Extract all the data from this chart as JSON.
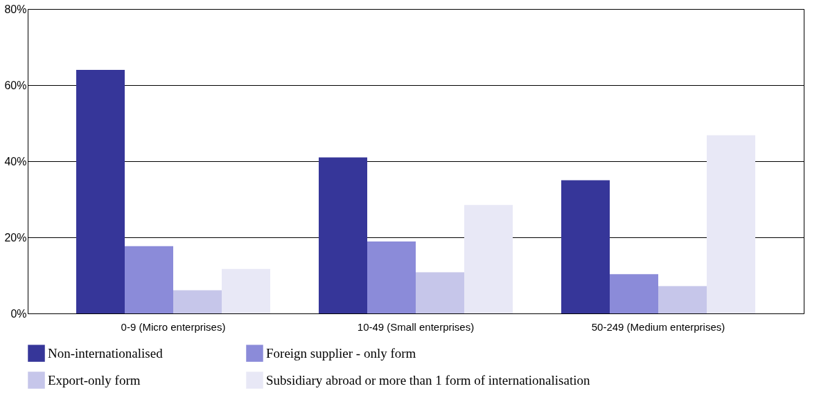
{
  "chart_data": {
    "type": "bar",
    "categories": [
      "0-9 (Micro enterprises)",
      "10-49 (Small enterprises)",
      "50-249 (Medium enterprises)"
    ],
    "series": [
      {
        "name": "Non-internationalised",
        "color": "#363699",
        "values": [
          64,
          41,
          35
        ]
      },
      {
        "name": "Foreign supplier - only form",
        "color": "#8b8bd9",
        "values": [
          17.7,
          18.9,
          10.3
        ]
      },
      {
        "name": "Export-only form",
        "color": "#c6c6ea",
        "values": [
          6.1,
          10.8,
          7.2
        ]
      },
      {
        "name": "Subsidiary abroad or more than 1 form of internationalisation",
        "color": "#e8e8f6",
        "values": [
          11.7,
          28.5,
          46.8
        ]
      }
    ],
    "ylim": [
      0,
      80
    ],
    "yticks": [
      {
        "value": 0,
        "label": "0%"
      },
      {
        "value": 20,
        "label": "20%"
      },
      {
        "value": 40,
        "label": "40%"
      },
      {
        "value": 60,
        "label": "60%"
      },
      {
        "value": 80,
        "label": "80%"
      }
    ],
    "grid": "y",
    "legend": "bottom"
  }
}
